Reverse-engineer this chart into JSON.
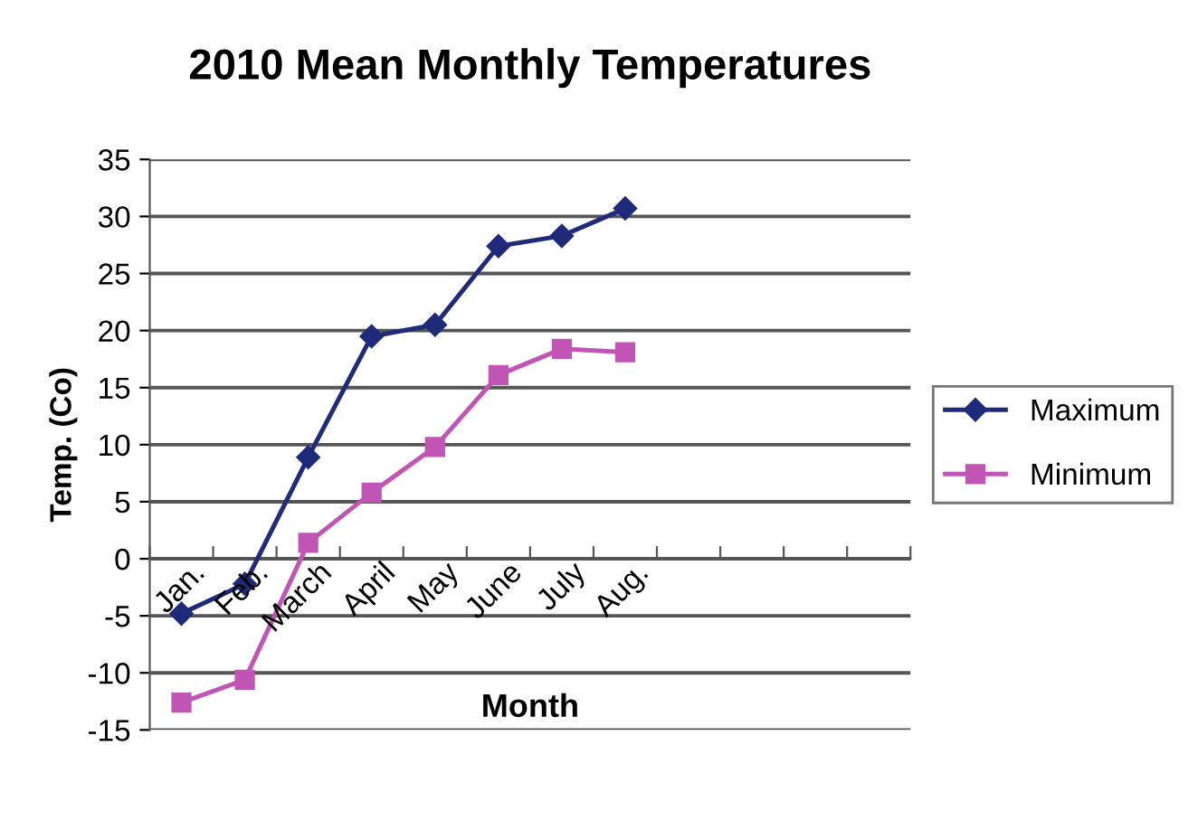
{
  "chart_data": {
    "type": "line",
    "title": "2010 Mean Monthly Temperatures",
    "xlabel": "Month",
    "ylabel": "Temp. (Co)",
    "categories": [
      "Jan.",
      "Feb.",
      "March",
      "April",
      "May",
      "June",
      "July",
      "Aug.",
      null,
      null,
      null,
      null
    ],
    "series": [
      {
        "name": "Maximum",
        "color": "#1f2a7a",
        "marker": "diamond",
        "values": [
          -4.8,
          -2.2,
          8.9,
          19.5,
          20.5,
          27.4,
          28.3,
          30.7,
          null,
          null,
          null,
          null
        ]
      },
      {
        "name": "Minimum",
        "color": "#c055b5",
        "marker": "square",
        "values": [
          -12.6,
          -10.6,
          1.4,
          5.8,
          9.8,
          16.1,
          18.4,
          18.1,
          null,
          null,
          null,
          null
        ]
      }
    ],
    "ylim": [
      -15,
      35
    ],
    "yticks": [
      -15,
      -10,
      -5,
      0,
      5,
      10,
      15,
      20,
      25,
      30,
      35
    ],
    "grid": "y",
    "legend": "right",
    "line_style": "solid"
  }
}
